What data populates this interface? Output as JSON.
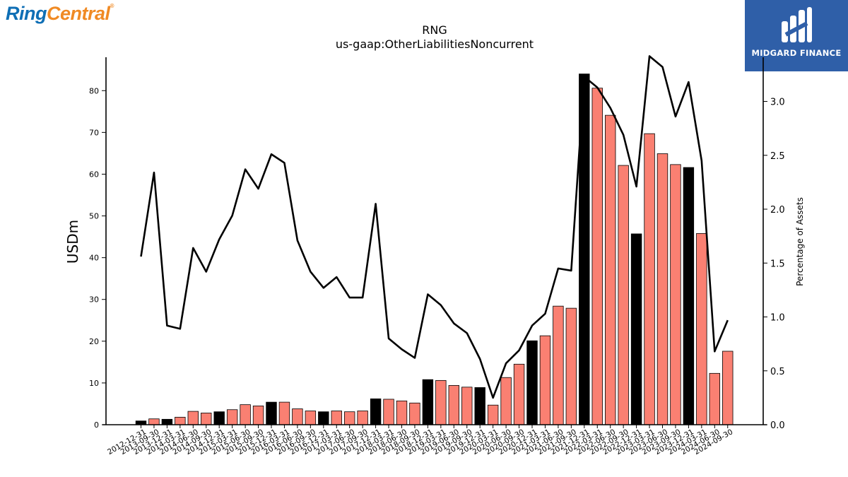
{
  "brand": {
    "left_logo_ring": "Ring",
    "left_logo_central": "Central",
    "left_logo_reg": "®",
    "right_logo_text": "MIDGARD FINANCE"
  },
  "colors": {
    "bar_default": "#fa8072",
    "bar_highlight": "#000000",
    "line": "#000000",
    "right_logo_bg": "#2f5fa8"
  },
  "chart_data": {
    "type": "bar",
    "title": "RNG",
    "subtitle": "us-gaap:OtherLiabilitiesNoncurrent",
    "ylabel": "USDm",
    "y2label": "Percentage of Assets",
    "ylim": [
      0,
      88
    ],
    "y2lim": [
      0,
      3.41
    ],
    "yticks": [
      0,
      10,
      20,
      30,
      40,
      50,
      60,
      70,
      80
    ],
    "y2ticks": [
      "0.0",
      "0.5",
      "1.0",
      "1.5",
      "2.0",
      "2.5",
      "3.0"
    ],
    "grid": false,
    "categories": [
      "2012-12-31",
      "2013-09-30",
      "2013-12-31",
      "2014-03-31",
      "2014-06-30",
      "2014-09-30",
      "2014-12-31",
      "2015-03-31",
      "2015-06-30",
      "2015-09-30",
      "2015-12-31",
      "2016-03-31",
      "2016-06-30",
      "2016-09-30",
      "2016-12-31",
      "2017-03-31",
      "2017-06-30",
      "2017-09-30",
      "2017-12-31",
      "2018-03-31",
      "2018-06-30",
      "2018-09-30",
      "2018-12-31",
      "2019-03-31",
      "2019-06-30",
      "2019-09-30",
      "2019-12-31",
      "2020-03-31",
      "2020-06-30",
      "2020-09-30",
      "2020-12-31",
      "2021-03-31",
      "2021-06-30",
      "2021-09-30",
      "2021-12-31",
      "2022-03-31",
      "2022-06-30",
      "2022-09-30",
      "2022-12-31",
      "2023-03-31",
      "2023-06-30",
      "2023-09-30",
      "2023-12-31",
      "2024-03-31",
      "2024-06-30",
      "2024-09-30"
    ],
    "series": [
      {
        "type": "bar",
        "values": [
          0.9,
          1.4,
          1.3,
          1.8,
          3.2,
          2.8,
          3.1,
          3.6,
          4.8,
          4.5,
          5.4,
          5.4,
          3.8,
          3.3,
          3.1,
          3.3,
          3.1,
          3.3,
          6.2,
          6.1,
          5.7,
          5.2,
          10.8,
          10.6,
          9.4,
          9.0,
          8.9,
          4.7,
          11.3,
          14.5,
          20.1,
          21.3,
          28.4,
          27.9,
          84.0,
          80.6,
          74.1,
          62.1,
          45.7,
          69.7,
          64.9,
          62.3,
          61.6,
          45.8,
          12.3,
          17.6
        ],
        "highlight": [
          true,
          false,
          true,
          false,
          false,
          false,
          true,
          false,
          false,
          false,
          true,
          false,
          false,
          false,
          true,
          false,
          false,
          false,
          true,
          false,
          false,
          false,
          true,
          false,
          false,
          false,
          true,
          false,
          false,
          false,
          true,
          false,
          false,
          false,
          true,
          false,
          false,
          false,
          true,
          false,
          false,
          false,
          true,
          false,
          false,
          false
        ]
      },
      {
        "type": "line",
        "axis": "right",
        "values": [
          1.56,
          2.34,
          0.92,
          0.89,
          1.64,
          1.42,
          1.72,
          1.94,
          2.37,
          2.19,
          2.51,
          2.43,
          1.71,
          1.42,
          1.27,
          1.37,
          1.18,
          1.18,
          2.05,
          0.8,
          0.7,
          0.62,
          1.21,
          1.11,
          0.94,
          0.85,
          0.61,
          0.25,
          0.57,
          0.69,
          0.92,
          1.03,
          1.45,
          1.43,
          3.23,
          3.13,
          2.94,
          2.69,
          2.21,
          3.42,
          3.32,
          2.86,
          3.18,
          2.45,
          0.68,
          0.97
        ]
      }
    ]
  }
}
